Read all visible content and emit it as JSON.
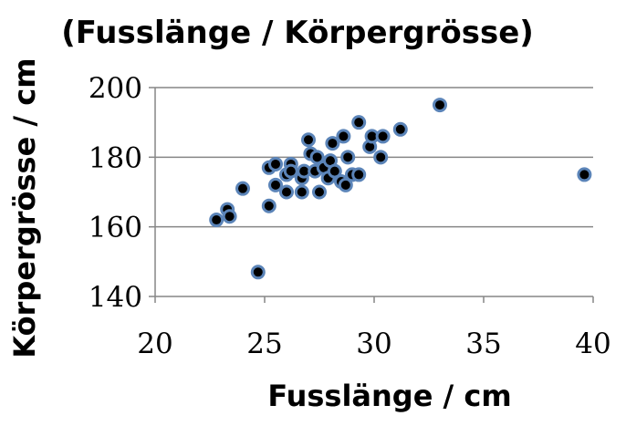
{
  "chart_data": {
    "type": "scatter",
    "title": "(Fusslänge / Körpergrösse)",
    "xlabel": "Fusslänge / cm",
    "ylabel": "Körpergrösse / cm",
    "xlim": [
      20,
      40
    ],
    "ylim": [
      140,
      200
    ],
    "xticks": [
      "20",
      "25",
      "30",
      "35",
      "40"
    ],
    "yticks": [
      "140",
      "160",
      "180",
      "200"
    ],
    "grid": "horizontal",
    "marker_fill": "#000000",
    "marker_edge": "#5b84b8",
    "points": [
      {
        "x": 22.8,
        "y": 162
      },
      {
        "x": 23.3,
        "y": 165
      },
      {
        "x": 23.4,
        "y": 163
      },
      {
        "x": 24.0,
        "y": 171
      },
      {
        "x": 24.7,
        "y": 147
      },
      {
        "x": 25.2,
        "y": 177
      },
      {
        "x": 25.2,
        "y": 166
      },
      {
        "x": 25.5,
        "y": 178
      },
      {
        "x": 25.5,
        "y": 172
      },
      {
        "x": 26.0,
        "y": 175
      },
      {
        "x": 26.0,
        "y": 170
      },
      {
        "x": 26.2,
        "y": 178
      },
      {
        "x": 26.2,
        "y": 176
      },
      {
        "x": 26.7,
        "y": 174
      },
      {
        "x": 26.7,
        "y": 170
      },
      {
        "x": 26.8,
        "y": 176
      },
      {
        "x": 27.0,
        "y": 185
      },
      {
        "x": 27.1,
        "y": 181
      },
      {
        "x": 27.3,
        "y": 176
      },
      {
        "x": 27.4,
        "y": 180
      },
      {
        "x": 27.5,
        "y": 170
      },
      {
        "x": 27.7,
        "y": 177
      },
      {
        "x": 27.9,
        "y": 174
      },
      {
        "x": 28.0,
        "y": 179
      },
      {
        "x": 28.1,
        "y": 184
      },
      {
        "x": 28.2,
        "y": 176
      },
      {
        "x": 28.5,
        "y": 173
      },
      {
        "x": 28.6,
        "y": 186
      },
      {
        "x": 28.7,
        "y": 172
      },
      {
        "x": 28.8,
        "y": 180
      },
      {
        "x": 29.0,
        "y": 175
      },
      {
        "x": 29.3,
        "y": 190
      },
      {
        "x": 29.3,
        "y": 175
      },
      {
        "x": 29.8,
        "y": 183
      },
      {
        "x": 29.9,
        "y": 186
      },
      {
        "x": 30.3,
        "y": 180
      },
      {
        "x": 30.4,
        "y": 186
      },
      {
        "x": 31.2,
        "y": 188
      },
      {
        "x": 33.0,
        "y": 195
      },
      {
        "x": 39.6,
        "y": 175
      }
    ]
  }
}
